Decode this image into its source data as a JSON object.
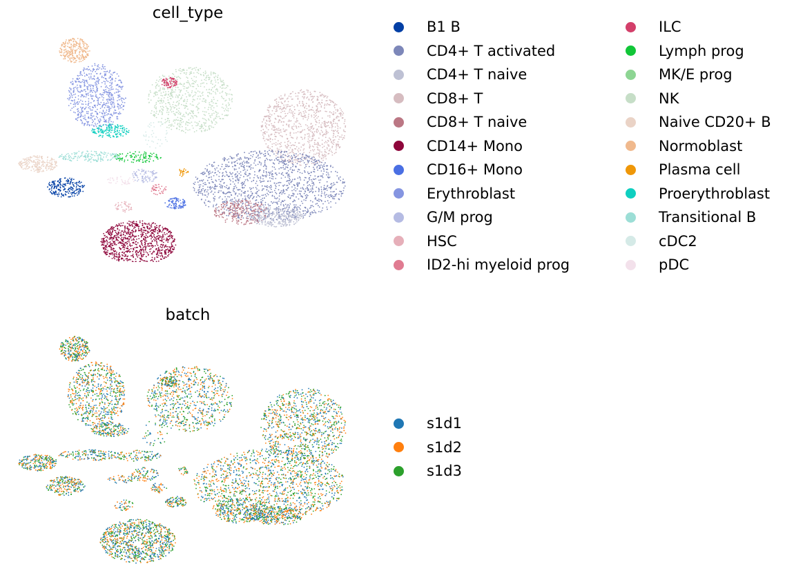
{
  "chart_data": [
    {
      "type": "scatter",
      "title": "cell_type",
      "xlabel": "",
      "ylabel": "",
      "grid": false,
      "legend_placement": "right",
      "legend_columns": 2,
      "legend": [
        {
          "name": "B1 B",
          "color": "#023fa5"
        },
        {
          "name": "CD4+ T activated",
          "color": "#7d87b9"
        },
        {
          "name": "CD4+ T naive",
          "color": "#bec1d4"
        },
        {
          "name": "CD8+ T",
          "color": "#d6bcc0"
        },
        {
          "name": "CD8+ T naive",
          "color": "#bb7784"
        },
        {
          "name": "CD14+ Mono",
          "color": "#8e063b"
        },
        {
          "name": "CD16+ Mono",
          "color": "#4a6fe3"
        },
        {
          "name": "Erythroblast",
          "color": "#8595e1"
        },
        {
          "name": "G/M prog",
          "color": "#b5bbe3"
        },
        {
          "name": "HSC",
          "color": "#e6afb9"
        },
        {
          "name": "ID2-hi myeloid prog",
          "color": "#e07b91"
        },
        {
          "name": "ILC",
          "color": "#d33f6a"
        },
        {
          "name": "Lymph prog",
          "color": "#11c638"
        },
        {
          "name": "MK/E prog",
          "color": "#8dd593"
        },
        {
          "name": "NK",
          "color": "#c6dec7"
        },
        {
          "name": "Naive CD20+ B",
          "color": "#ead3c6"
        },
        {
          "name": "Normoblast",
          "color": "#f0b98d"
        },
        {
          "name": "Plasma cell",
          "color": "#ef9708"
        },
        {
          "name": "Proerythroblast",
          "color": "#0fcfc0"
        },
        {
          "name": "Transitional B",
          "color": "#9cded6"
        },
        {
          "name": "cDC2",
          "color": "#d5eae7"
        },
        {
          "name": "pDC",
          "color": "#f3e1eb"
        }
      ]
    },
    {
      "type": "scatter",
      "title": "batch",
      "xlabel": "",
      "ylabel": "",
      "grid": false,
      "legend_placement": "right",
      "legend": [
        {
          "name": "s1d1",
          "color": "#1f77b4"
        },
        {
          "name": "s1d2",
          "color": "#ff7f0e"
        },
        {
          "name": "s1d3",
          "color": "#2ca02c"
        }
      ]
    }
  ]
}
